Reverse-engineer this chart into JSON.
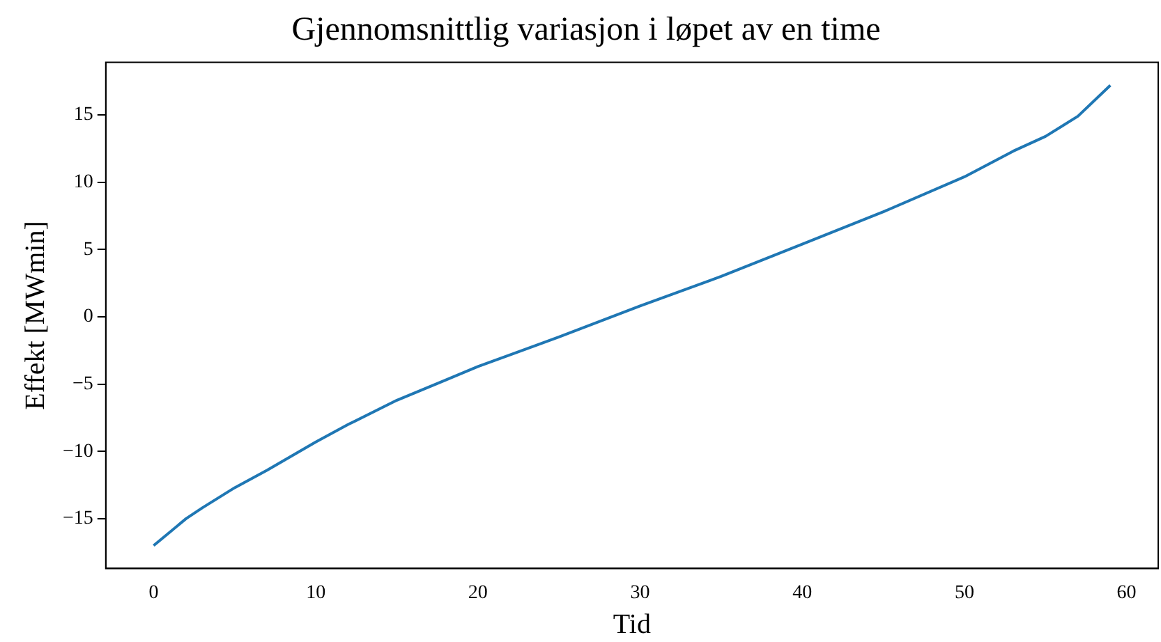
{
  "chart_data": {
    "type": "line",
    "title": "Gjennomsnittlig variasjon i løpet av en time",
    "xlabel": "Tid",
    "ylabel": "Effekt [MWmin]",
    "x": [
      0,
      1,
      2,
      3,
      5,
      7,
      10,
      12,
      15,
      18,
      20,
      25,
      30,
      35,
      40,
      45,
      50,
      53,
      55,
      57,
      59
    ],
    "series": [
      {
        "color": "#1f77b4",
        "values": [
          -17.0,
          -16.0,
          -15.0,
          -14.2,
          -12.7,
          -11.4,
          -9.3,
          -8.0,
          -6.2,
          -4.7,
          -3.7,
          -1.5,
          0.8,
          3.0,
          5.4,
          7.8,
          10.4,
          12.3,
          13.4,
          14.9,
          17.2
        ]
      }
    ],
    "xlim": [
      -2.95,
      61.95
    ],
    "xticks": [
      0,
      10,
      20,
      30,
      40,
      50,
      60
    ],
    "ylim": [
      -18.7,
      18.9
    ],
    "yticks": [
      -15,
      -10,
      -5,
      0,
      5,
      10,
      15
    ],
    "grid": false,
    "legend": false,
    "marker": "none",
    "line_style": "solid"
  }
}
